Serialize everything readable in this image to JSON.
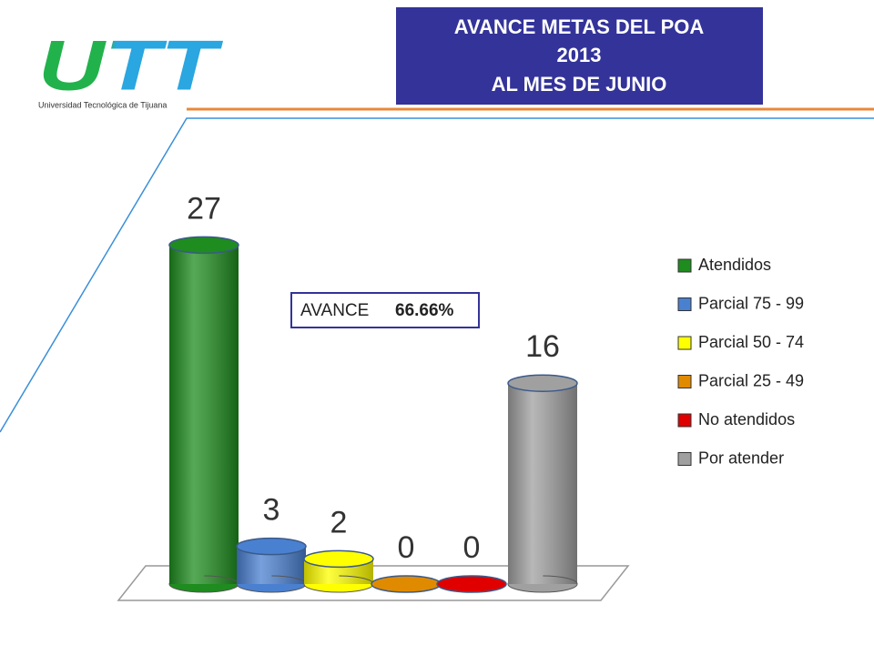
{
  "header": {
    "logo": "UTT",
    "institution": "Universidad Tecnológica de Tijuana",
    "title": [
      "AVANCE METAS DEL POA",
      "2013",
      "AL MES DE JUNIO"
    ]
  },
  "chart_data": {
    "type": "cylinder-bar",
    "categories": [
      "Atendidos",
      "Parcial 75 - 99",
      "Parcial 50 - 74",
      "Parcial 25 - 49",
      "No atendidos",
      "Por atender"
    ],
    "values": [
      27,
      3,
      2,
      0,
      0,
      16
    ],
    "colors": [
      "#1e8c1e",
      "#4a80d0",
      "#ffff00",
      "#e08a00",
      "#e00000",
      "#a0a0a0"
    ],
    "annotation": {
      "label": "AVANCE",
      "value": "66.66%"
    },
    "legend": "right"
  }
}
